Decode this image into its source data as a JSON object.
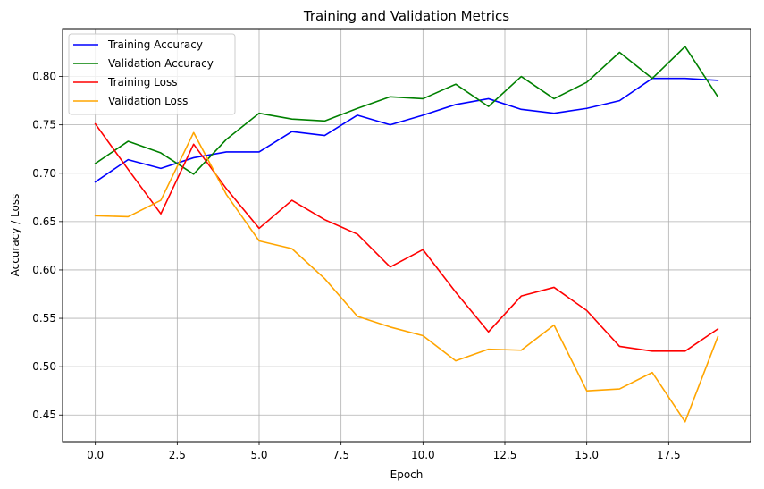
{
  "chart_data": {
    "type": "line",
    "title": "Training and Validation Metrics",
    "xlabel": "Epoch",
    "ylabel": "Accuracy / Loss",
    "xlim": [
      -1,
      20
    ],
    "ylim": [
      0.4225,
      0.8495
    ],
    "xticks": [
      0.0,
      2.5,
      5.0,
      7.5,
      10.0,
      12.5,
      15.0,
      17.5
    ],
    "xtick_labels": [
      "0.0",
      "2.5",
      "5.0",
      "7.5",
      "10.0",
      "12.5",
      "15.0",
      "17.5"
    ],
    "yticks": [
      0.45,
      0.5,
      0.55,
      0.6,
      0.65,
      0.7,
      0.75,
      0.8
    ],
    "ytick_labels": [
      "0.45",
      "0.50",
      "0.55",
      "0.60",
      "0.65",
      "0.70",
      "0.75",
      "0.80"
    ],
    "grid": true,
    "legend_position": "top-left",
    "x": [
      0,
      1,
      2,
      3,
      4,
      5,
      6,
      7,
      8,
      9,
      10,
      11,
      12,
      13,
      14,
      15,
      16,
      17,
      18,
      19
    ],
    "series": [
      {
        "name": "Training Accuracy",
        "color": "#0000ff",
        "values": [
          0.691,
          0.714,
          0.705,
          0.716,
          0.722,
          0.722,
          0.743,
          0.739,
          0.76,
          0.75,
          0.76,
          0.771,
          0.777,
          0.766,
          0.762,
          0.767,
          0.775,
          0.798,
          0.798,
          0.796
        ]
      },
      {
        "name": "Validation Accuracy",
        "color": "#008000",
        "values": [
          0.71,
          0.733,
          0.721,
          0.699,
          0.735,
          0.762,
          0.756,
          0.754,
          0.767,
          0.779,
          0.777,
          0.792,
          0.769,
          0.8,
          0.777,
          0.794,
          0.825,
          0.798,
          0.831,
          0.779
        ]
      },
      {
        "name": "Training Loss",
        "color": "#ff0000",
        "values": [
          0.751,
          0.704,
          0.658,
          0.73,
          0.684,
          0.643,
          0.672,
          0.652,
          0.637,
          0.603,
          0.621,
          0.577,
          0.536,
          0.573,
          0.582,
          0.558,
          0.521,
          0.516,
          0.516,
          0.539
        ]
      },
      {
        "name": "Validation Loss",
        "color": "#ffa500",
        "values": [
          0.656,
          0.655,
          0.672,
          0.742,
          0.678,
          0.63,
          0.622,
          0.591,
          0.552,
          0.541,
          0.532,
          0.506,
          0.518,
          0.517,
          0.543,
          0.475,
          0.477,
          0.494,
          0.443,
          0.531
        ]
      }
    ]
  }
}
